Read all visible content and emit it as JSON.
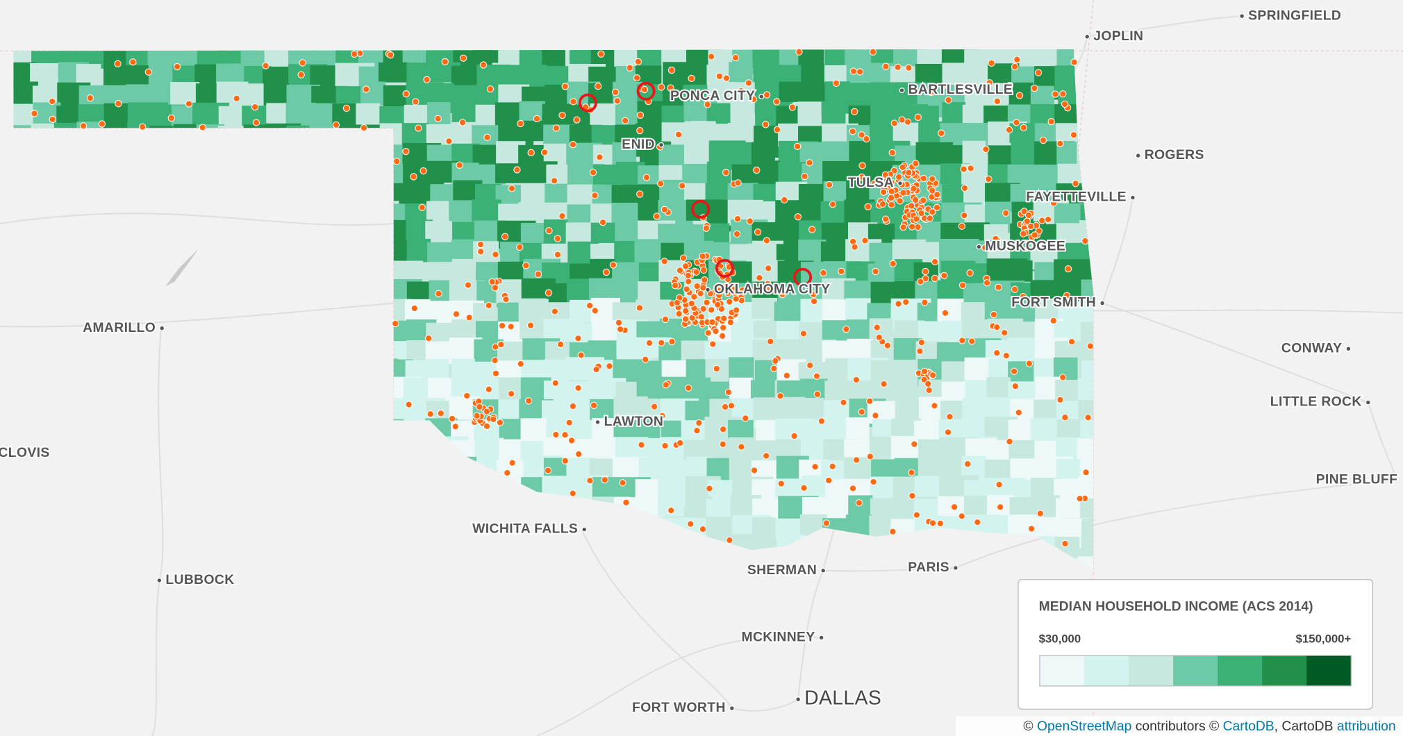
{
  "map": {
    "cities": [
      "SPRINGFIELD",
      "JOPLIN",
      "PONCA CITY",
      "BARTLESVILLE",
      "ENID",
      "ROGERS",
      "TULSA",
      "FAYETTEVILLE",
      "MUSKOGEE",
      "OKLAHOMA CITY",
      "FORT SMITH",
      "AMARILLO",
      "CONWAY",
      "LITTLE ROCK",
      "LAWTON",
      "CLOVIS",
      "PINE BLUFF",
      "WICHITA FALLS",
      "LUBBOCK",
      "SHERMAN",
      "PARIS",
      "MCKINNEY",
      "FORT WORTH",
      "DALLAS"
    ]
  },
  "legend": {
    "title": "MEDIAN HOUSEHOLD INCOME (ACS 2014)",
    "min_label": "$30,000",
    "max_label": "$150,000+",
    "colors": [
      "#eef8f8",
      "#d3f4ee",
      "#c6e8df",
      "#6ccaa7",
      "#3cb176",
      "#20904a",
      "#005a24"
    ]
  },
  "attribution": {
    "copy": "©",
    "osm": "OpenStreetMap",
    "contributors": "contributors ©",
    "carto": "CartoDB",
    "rest": ", CartoDB",
    "link": "attribution"
  }
}
